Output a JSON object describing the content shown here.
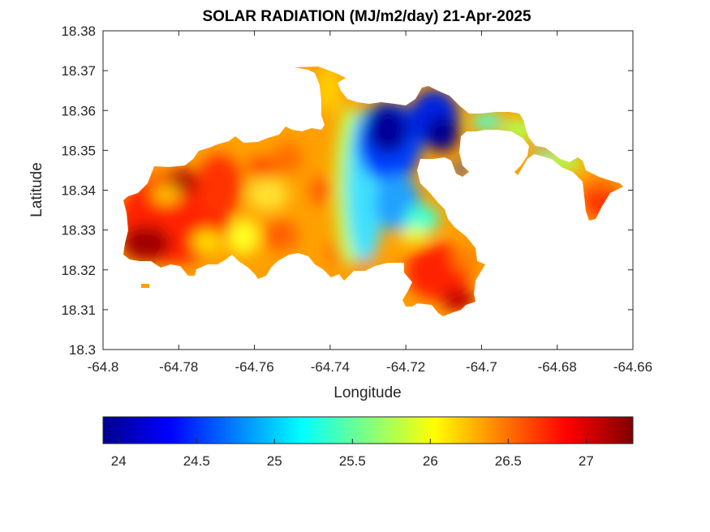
{
  "title": "SOLAR RADIATION (MJ/m2/day) 21-Apr-2025",
  "chart_data": {
    "type": "heatmap",
    "title": "SOLAR RADIATION (MJ/m2/day) 21-Apr-2025",
    "xlabel": "Longitude",
    "ylabel": "Latitude",
    "xlim": [
      -64.8,
      -64.66
    ],
    "ylim": [
      18.3,
      18.38
    ],
    "xticks": [
      -64.8,
      -64.78,
      -64.76,
      -64.74,
      -64.72,
      -64.7,
      -64.68,
      -64.66
    ],
    "xtick_labels": [
      "-64.8",
      "-64.78",
      "-64.76",
      "-64.74",
      "-64.72",
      "-64.7",
      "-64.68",
      "-64.66"
    ],
    "yticks": [
      18.3,
      18.31,
      18.32,
      18.33,
      18.34,
      18.35,
      18.36,
      18.37,
      18.38
    ],
    "ytick_labels": [
      "18.3",
      "18.31",
      "18.32",
      "18.33",
      "18.34",
      "18.35",
      "18.36",
      "18.37",
      "18.38"
    ],
    "colormap": "jet",
    "colorbar": {
      "orientation": "horizontal",
      "range": [
        23.9,
        27.3
      ],
      "ticks": [
        24,
        24.5,
        25,
        25.5,
        26,
        26.5,
        27
      ],
      "tick_labels": [
        "24",
        "24.5",
        "25",
        "25.5",
        "26",
        "26.5",
        "27"
      ]
    },
    "regions": [
      {
        "lon": -64.785,
        "lat": 18.33,
        "value": 26.9
      },
      {
        "lon": -64.79,
        "lat": 18.325,
        "value": 27.2
      },
      {
        "lon": -64.775,
        "lat": 18.342,
        "value": 27.0
      },
      {
        "lon": -64.77,
        "lat": 18.335,
        "value": 26.6
      },
      {
        "lon": -64.76,
        "lat": 18.345,
        "value": 26.3
      },
      {
        "lon": -64.75,
        "lat": 18.338,
        "value": 26.2
      },
      {
        "lon": -64.742,
        "lat": 18.36,
        "value": 26.4
      },
      {
        "lon": -64.735,
        "lat": 18.34,
        "value": 25.4
      },
      {
        "lon": -64.728,
        "lat": 18.355,
        "value": 24.0
      },
      {
        "lon": -64.722,
        "lat": 18.345,
        "value": 24.6
      },
      {
        "lon": -64.712,
        "lat": 18.36,
        "value": 24.2
      },
      {
        "lon": -64.715,
        "lat": 18.322,
        "value": 26.8
      },
      {
        "lon": -64.71,
        "lat": 18.312,
        "value": 27.0
      },
      {
        "lon": -64.7,
        "lat": 18.358,
        "value": 25.8
      },
      {
        "lon": -64.688,
        "lat": 18.347,
        "value": 25.7
      },
      {
        "lon": -64.67,
        "lat": 18.338,
        "value": 26.8
      }
    ]
  },
  "colors": {
    "jet_dark_blue": "#00008f",
    "jet_blue": "#0000ff",
    "jet_cyan": "#00ffff",
    "jet_yellow": "#ffff00",
    "jet_red": "#ff0000",
    "jet_dark_red": "#800000"
  }
}
